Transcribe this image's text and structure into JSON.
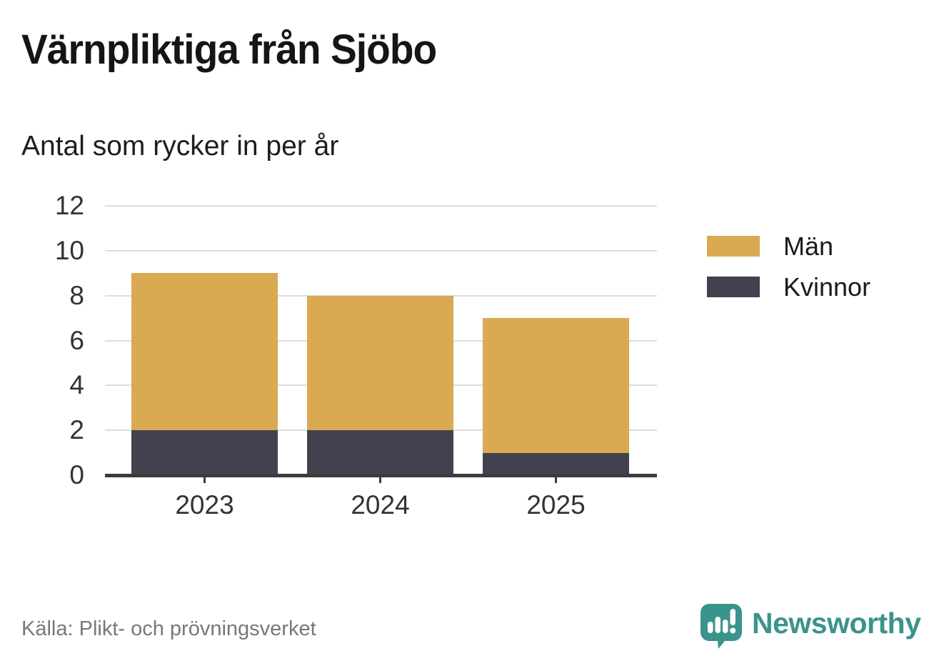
{
  "header": {
    "title": "Värnpliktiga från Sjöbo",
    "subtitle": "Antal som rycker in per år"
  },
  "chart_data": {
    "type": "bar",
    "stacked": true,
    "categories": [
      "2023",
      "2024",
      "2025"
    ],
    "series": [
      {
        "name": "Män",
        "color": "#d9aa52",
        "values": [
          7,
          6,
          6
        ]
      },
      {
        "name": "Kvinnor",
        "color": "#434150",
        "values": [
          2,
          2,
          1
        ]
      }
    ],
    "totals": [
      9,
      8,
      7
    ],
    "title": "Värnpliktiga från Sjöbo",
    "subtitle": "Antal som rycker in per år",
    "xlabel": "",
    "ylabel": "",
    "ylim": [
      0,
      12
    ],
    "yticks": [
      0,
      2,
      4,
      6,
      8,
      10,
      12
    ],
    "grid": true,
    "legend_position": "right",
    "stack_order_bottom_to_top": [
      "Kvinnor",
      "Män"
    ]
  },
  "colors": {
    "grid": "#dcdcdc",
    "axis": "#3b3b3b",
    "tick_text": "#333333",
    "brand_teal": "#3a948c",
    "source_text": "#787878"
  },
  "footer": {
    "source": "Källa: Plikt- och prövningsverket",
    "brand": "Newsworthy"
  }
}
